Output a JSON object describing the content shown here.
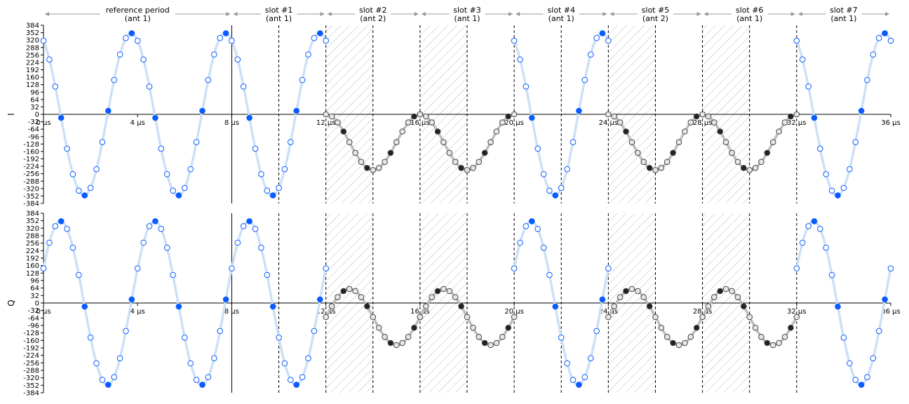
{
  "chart_data": {
    "type": "scatter",
    "x_range": [
      0,
      36
    ],
    "x_ticks": [
      0,
      4,
      8,
      12,
      16,
      20,
      24,
      28,
      32,
      36
    ],
    "x_tick_labels": [
      "0 µs",
      "4 µs",
      "8 µs",
      "12 µs",
      "16 µs",
      "20 µs",
      "24 µs",
      "28 µs",
      "32 µs",
      "36 µs"
    ],
    "y_range": [
      -384,
      384
    ],
    "y_ticks": [
      -384,
      -352,
      -320,
      -288,
      -256,
      -224,
      -192,
      -160,
      -128,
      -96,
      -64,
      -32,
      0,
      32,
      64,
      96,
      128,
      160,
      192,
      224,
      256,
      288,
      320,
      352,
      384
    ],
    "y_tick_labels": [
      "-384",
      "-352",
      "-320",
      "-288",
      "-256",
      "-224",
      "-192",
      "-160",
      "-128",
      "-96",
      "-64",
      "-32",
      "0",
      "32",
      "64",
      "96",
      "128",
      "160",
      "192",
      "224",
      "256",
      "288",
      "320",
      "352",
      "384"
    ],
    "periods": [
      {
        "label": "reference period",
        "sub": "(ant 1)",
        "start": 0,
        "end": 8,
        "kind": "ref"
      },
      {
        "label": "slot #1",
        "sub": "(ant 1)",
        "start": 8,
        "end": 12,
        "kind": "sample"
      },
      {
        "label": "slot #2",
        "sub": "(ant 2)",
        "start": 12,
        "end": 16,
        "kind": "switch"
      },
      {
        "label": "slot #3",
        "sub": "(ant 1)",
        "start": 16,
        "end": 20,
        "kind": "switch"
      },
      {
        "label": "slot #4",
        "sub": "(ant 1)",
        "start": 20,
        "end": 24,
        "kind": "sample"
      },
      {
        "label": "slot #5",
        "sub": "(ant 2)",
        "start": 24,
        "end": 28,
        "kind": "switch"
      },
      {
        "label": "slot #6",
        "sub": "(ant 1)",
        "start": 28,
        "end": 32,
        "kind": "switch"
      },
      {
        "label": "slot #7",
        "sub": "(ant 1)",
        "start": 32,
        "end": 36,
        "kind": "sample"
      }
    ],
    "hatched_spans": [
      [
        12,
        14
      ],
      [
        16,
        18
      ],
      [
        24,
        26
      ],
      [
        28,
        30
      ]
    ],
    "solid_lines": [
      8
    ],
    "dashed_lines": [
      10,
      12,
      14,
      16,
      18,
      20,
      22,
      24,
      26,
      28,
      30,
      32
    ],
    "signal": {
      "amplitude": 350,
      "freq_mhz": 0.25,
      "phase_I_deg": 25,
      "phase_Q_deg": -65,
      "sample_step_us": 0.25,
      "highlight_step_us": 1.0
    },
    "distortion": {
      "amplitude": 120,
      "centre_I": -120,
      "centre_Q": -60
    },
    "colors": {
      "signal": "#cde0f7",
      "marker": "#0a5cff",
      "marker_fill": "#ffffff",
      "distorted": "#bdbdbd",
      "distorted_marker": "#444444",
      "highlight_dark": "#222222",
      "hatch": "#bbbbbb"
    },
    "series": [
      {
        "name": "I",
        "component": "I"
      },
      {
        "name": "Q",
        "component": "Q"
      }
    ]
  }
}
